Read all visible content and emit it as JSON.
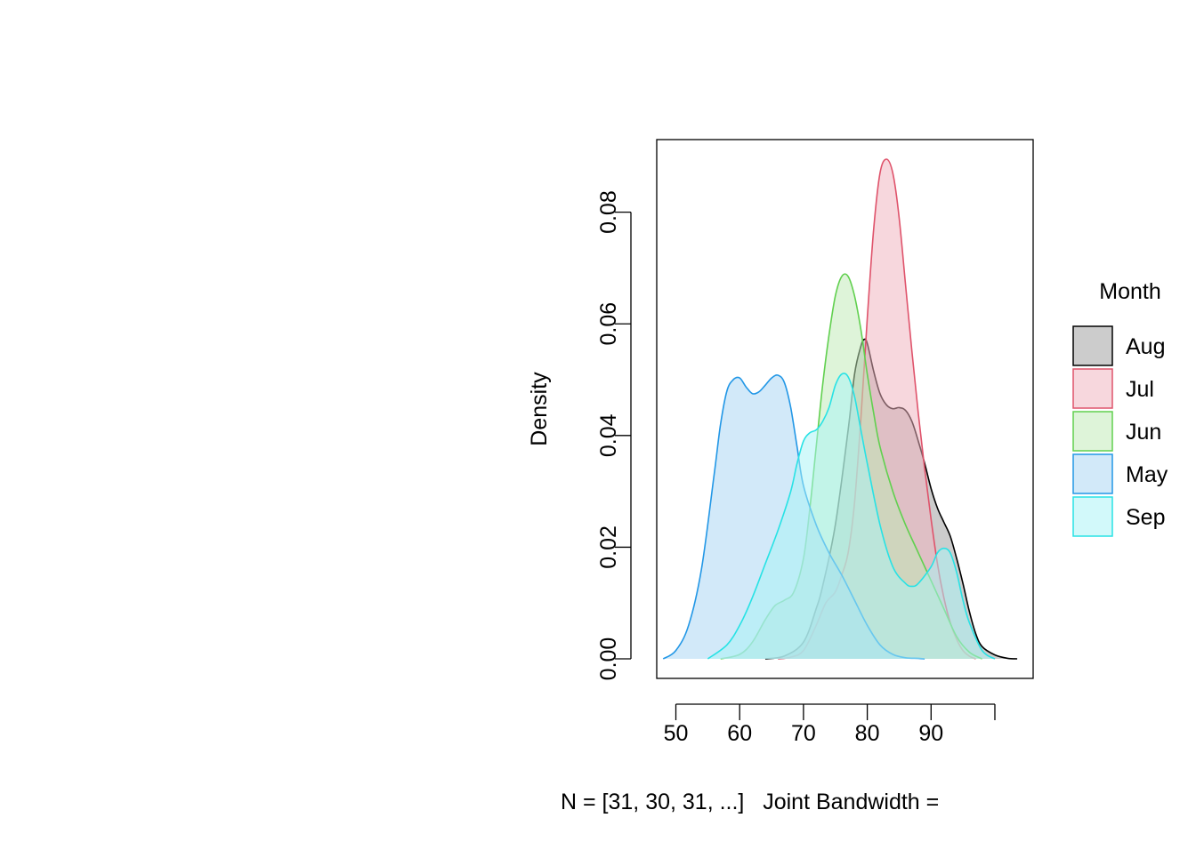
{
  "chart_data": {
    "type": "area",
    "title": "",
    "xlabel": "N = [31, 30, 31, ...]   Joint Bandwidth =",
    "ylabel": "Density",
    "xlim": [
      47,
      106
    ],
    "ylim": [
      -0.0035,
      0.093
    ],
    "x_ticks": [
      50,
      60,
      70,
      80,
      90,
      100
    ],
    "x_tick_labels": [
      "50",
      "60",
      "70",
      "80",
      "90",
      ""
    ],
    "y_ticks": [
      0,
      0.02,
      0.04,
      0.06,
      0.08
    ],
    "y_tick_labels": [
      "0.00",
      "0.02",
      "0.04",
      "0.06",
      "0.08"
    ],
    "grid": false,
    "legend": {
      "title": "Month",
      "position": "right"
    },
    "series": [
      {
        "name": "Aug",
        "line": "#000000",
        "fill": "#9e9e9e",
        "fill_opacity": 0.52,
        "x": [
          64,
          67,
          70,
          72,
          73,
          75,
          77,
          78,
          79,
          79.5,
          80,
          81,
          82,
          83,
          84,
          85,
          86,
          87,
          88,
          89,
          90,
          91,
          92,
          93,
          94,
          95,
          96,
          97,
          98,
          100,
          102,
          103.5
        ],
        "y": [
          0,
          0.0005,
          0.003,
          0.009,
          0.013,
          0.024,
          0.041,
          0.051,
          0.056,
          0.0572,
          0.0565,
          0.0515,
          0.0475,
          0.0455,
          0.0448,
          0.045,
          0.0445,
          0.0425,
          0.039,
          0.035,
          0.0305,
          0.027,
          0.0245,
          0.022,
          0.018,
          0.0135,
          0.0085,
          0.0045,
          0.0022,
          0.0007,
          0.0001,
          0
        ]
      },
      {
        "name": "Jul",
        "line": "#df536b",
        "fill": "#f0b3bd",
        "fill_opacity": 0.52,
        "x": [
          66,
          68,
          70,
          72,
          73.5,
          75,
          76,
          77,
          78,
          79,
          80,
          81,
          82,
          83,
          84,
          85,
          86,
          87,
          88,
          89,
          90,
          91,
          92,
          93,
          94,
          95,
          96,
          97
        ],
        "y": [
          0,
          0.0003,
          0.0015,
          0.006,
          0.01,
          0.012,
          0.015,
          0.019,
          0.028,
          0.043,
          0.061,
          0.077,
          0.087,
          0.0895,
          0.087,
          0.079,
          0.067,
          0.055,
          0.044,
          0.034,
          0.025,
          0.017,
          0.011,
          0.0065,
          0.0035,
          0.0015,
          0.0005,
          0
        ]
      },
      {
        "name": "Jun",
        "line": "#61d04f",
        "fill": "#bfe9b6",
        "fill_opacity": 0.52,
        "x": [
          57,
          60,
          62,
          64,
          65.5,
          67,
          68.5,
          70,
          71,
          72,
          73,
          74,
          75,
          76,
          77,
          78,
          79,
          80,
          81,
          82,
          84,
          86,
          88,
          90,
          92,
          94,
          96,
          98
        ],
        "y": [
          0,
          0.0008,
          0.003,
          0.007,
          0.0095,
          0.0105,
          0.012,
          0.018,
          0.027,
          0.038,
          0.049,
          0.058,
          0.065,
          0.0685,
          0.0685,
          0.065,
          0.059,
          0.051,
          0.044,
          0.038,
          0.03,
          0.024,
          0.019,
          0.014,
          0.009,
          0.004,
          0.0012,
          0
        ]
      },
      {
        "name": "May",
        "line": "#2297e6",
        "fill": "#a8d4f4",
        "fill_opacity": 0.52,
        "x": [
          48,
          50,
          52,
          54,
          56,
          57,
          58,
          59,
          60,
          61,
          62,
          63,
          64,
          65,
          66,
          67,
          68,
          69,
          70,
          72,
          74,
          76,
          78,
          80,
          82,
          84,
          86,
          88,
          89
        ],
        "y": [
          0,
          0.0015,
          0.006,
          0.016,
          0.033,
          0.042,
          0.048,
          0.05,
          0.0503,
          0.0487,
          0.0475,
          0.0478,
          0.049,
          0.0503,
          0.0508,
          0.0495,
          0.045,
          0.038,
          0.031,
          0.024,
          0.019,
          0.015,
          0.0105,
          0.006,
          0.0025,
          0.0008,
          0.0002,
          0.0001,
          0
        ]
      },
      {
        "name": "Sep",
        "line": "#28e2e5",
        "fill": "#a9f3f5",
        "fill_opacity": 0.52,
        "x": [
          55,
          58,
          60,
          62,
          64,
          66,
          68,
          69,
          70,
          71,
          72,
          73,
          74,
          75,
          76,
          77,
          78,
          79,
          80,
          82,
          84,
          86,
          87,
          88,
          90,
          91,
          92,
          93,
          94,
          95,
          96,
          98,
          100
        ],
        "y": [
          0,
          0.0025,
          0.006,
          0.011,
          0.017,
          0.023,
          0.03,
          0.035,
          0.039,
          0.0405,
          0.041,
          0.0425,
          0.045,
          0.049,
          0.051,
          0.0505,
          0.047,
          0.041,
          0.035,
          0.024,
          0.0165,
          0.0135,
          0.013,
          0.0135,
          0.0165,
          0.019,
          0.0198,
          0.019,
          0.0155,
          0.0105,
          0.0065,
          0.0015,
          0
        ]
      }
    ]
  }
}
